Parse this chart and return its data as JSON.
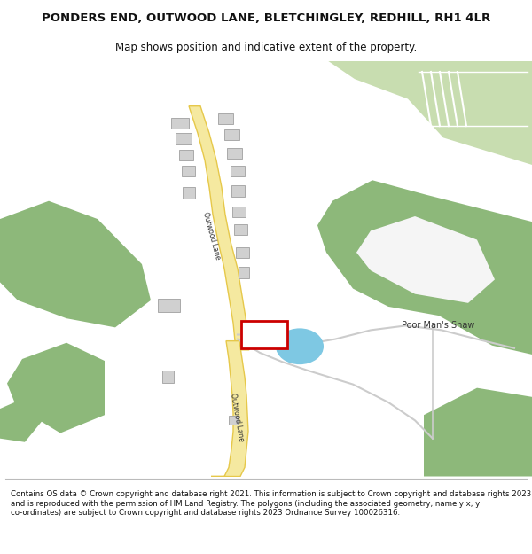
{
  "title": "PONDERS END, OUTWOOD LANE, BLETCHINGLEY, REDHILL, RH1 4LR",
  "subtitle": "Map shows position and indicative extent of the property.",
  "footer": "Contains OS data © Crown copyright and database right 2021. This information is subject to Crown copyright and database rights 2023 and is reproduced with the permission of HM Land Registry. The polygons (including the associated geometry, namely x, y co-ordinates) are subject to Crown copyright and database rights 2023 Ordnance Survey 100026316.",
  "bg_color": "#ffffff",
  "map_bg": "#f5f5f5",
  "road_fill": "#f5e9a0",
  "road_edge": "#e6c84a",
  "green_color": "#8db87a",
  "green_light": "#c8ddb0",
  "path_color": "#cccccc",
  "water_color": "#7ec8e3",
  "building_color": "#d0d0d0",
  "building_edge": "#aaaaaa",
  "red_box_color": "#cc0000",
  "label_color": "#333333",
  "road_label_upper": "Outwood Lane",
  "road_label_lower": "Outwood Lane",
  "road_label_bottom": "Outwood Lane",
  "shaw_label": "Poor Man's Shaw"
}
